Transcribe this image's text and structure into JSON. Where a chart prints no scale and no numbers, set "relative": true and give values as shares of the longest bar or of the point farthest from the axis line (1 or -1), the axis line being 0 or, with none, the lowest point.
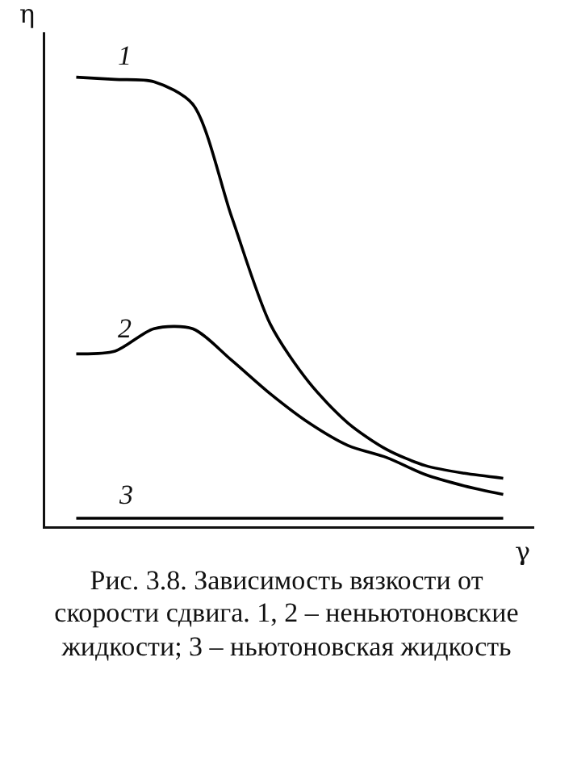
{
  "chart_data": {
    "type": "line",
    "relative": true,
    "xlabel": "γ",
    "ylabel": "η",
    "legend": false,
    "marker": "none",
    "line_style": "solid",
    "categories": [
      null,
      null,
      null,
      null,
      null,
      null,
      null,
      null,
      null,
      null,
      null,
      null
    ],
    "series": [
      {
        "name": "1",
        "color": "#000000",
        "values": [
          1,
          0.995,
          0.99,
          0.94,
          0.69,
          0.45,
          0.32,
          0.23,
          0.171,
          0.135,
          0.118,
          0.107
        ]
      },
      {
        "name": "2",
        "color": "#000000",
        "values": [
          0.384,
          0.39,
          0.44,
          0.44,
          0.37,
          0.295,
          0.23,
          0.18,
          0.153,
          0.115,
          0.09,
          0.071
        ]
      },
      {
        "name": "3",
        "color": "#000000",
        "values": [
          0.018,
          0.018,
          0.018,
          0.018,
          0.018,
          0.018,
          0.018,
          0.018,
          0.018,
          0.018,
          0.018,
          0.018
        ]
      }
    ],
    "annotations": [
      "Рис. 3.8. Зависимость вязкости от скорости сдвига. 1, 2 – неньютоновские жидкости; 3 – ньютоновская жидкость"
    ]
  }
}
